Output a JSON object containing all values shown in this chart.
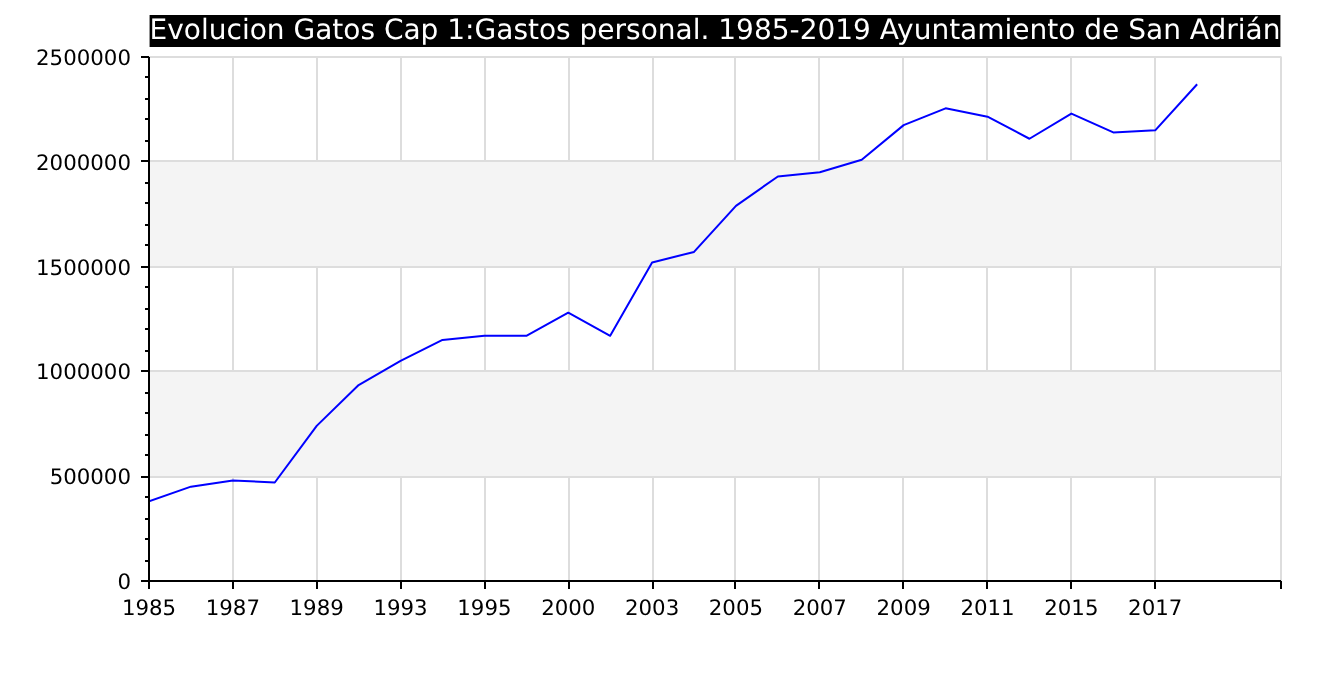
{
  "chart_data": {
    "type": "line",
    "title": "Evolucion Gatos Cap 1:Gastos personal. 1985-2019 Ayuntamiento de San Adrián",
    "categories": [
      "1985",
      null,
      "1987",
      null,
      "1989",
      null,
      "1993",
      null,
      "1995",
      null,
      "2000",
      null,
      "2003",
      null,
      "2005",
      null,
      "2007",
      null,
      "2009",
      null,
      "2011",
      null,
      "2015",
      null,
      "2017",
      null,
      null
    ],
    "series": [
      {
        "color": "#0000ff",
        "values": [
          380000,
          450000,
          480000,
          470000,
          740000,
          935000,
          1050000,
          1150000,
          1170000,
          1170000,
          1280000,
          1170000,
          1520000,
          1570000,
          1790000,
          1930000,
          1950000,
          2010000,
          2175000,
          2255000,
          2215000,
          2110000,
          2230000,
          2140000,
          2150000,
          2370000,
          null
        ]
      }
    ],
    "ylim": [
      0,
      2500000
    ],
    "yticks": [
      0,
      500000,
      1000000,
      1500000,
      2000000,
      2500000
    ],
    "grid": true,
    "marker": "none",
    "line_style": "solid"
  }
}
